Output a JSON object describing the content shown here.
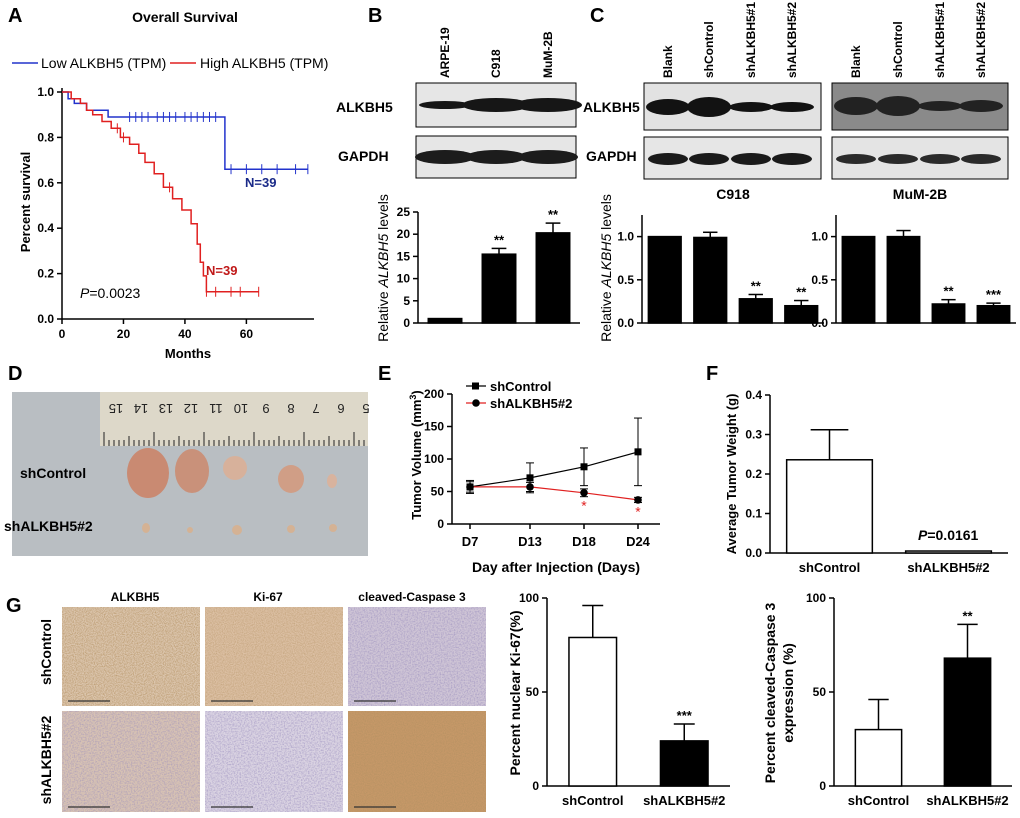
{
  "panels": {
    "A": "A",
    "B": "B",
    "C": "C",
    "D": "D",
    "E": "E",
    "F": "F",
    "G": "G"
  },
  "panel_a": {
    "title": "Overall Survival",
    "legend_low": "Low ALKBH5 (TPM)",
    "legend_high": "High ALKBH5 (TPM)",
    "ylabel": "Percent survival",
    "xlabel": "Months",
    "n_low": "N=39",
    "n_high": "N=39",
    "p_prefix": "P",
    "p_value": "=0.0023",
    "colors": {
      "low": "#2233cc",
      "high": "#e02020",
      "n_low": "#1a2a88",
      "n_high": "#c01818"
    },
    "yticks": [
      "0.0",
      "0.2",
      "0.4",
      "0.6",
      "0.8",
      "1.0"
    ],
    "xticks": [
      "0",
      "20",
      "40",
      "60"
    ]
  },
  "chart_data": [
    {
      "id": "A",
      "type": "line",
      "title": "Overall Survival",
      "xlabel": "Months",
      "ylabel": "Percent survival",
      "xlim": [
        0,
        82
      ],
      "ylim": [
        0,
        1.0
      ],
      "series": [
        {
          "name": "Low ALKBH5 (TPM)",
          "points": [
            [
              0,
              1.0
            ],
            [
              2,
              1.0
            ],
            [
              2,
              0.97
            ],
            [
              4,
              0.97
            ],
            [
              4,
              0.95
            ],
            [
              8,
              0.95
            ],
            [
              8,
              0.92
            ],
            [
              15,
              0.92
            ],
            [
              15,
              0.89
            ],
            [
              53,
              0.89
            ],
            [
              53,
              0.66
            ],
            [
              80,
              0.66
            ]
          ]
        },
        {
          "name": "High ALKBH5 (TPM)",
          "points": [
            [
              0,
              1.0
            ],
            [
              3,
              1.0
            ],
            [
              3,
              0.97
            ],
            [
              6,
              0.97
            ],
            [
              6,
              0.95
            ],
            [
              8,
              0.95
            ],
            [
              8,
              0.92
            ],
            [
              10,
              0.92
            ],
            [
              10,
              0.9
            ],
            [
              13,
              0.9
            ],
            [
              13,
              0.87
            ],
            [
              16,
              0.87
            ],
            [
              16,
              0.84
            ],
            [
              19,
              0.84
            ],
            [
              19,
              0.8
            ],
            [
              22,
              0.8
            ],
            [
              22,
              0.77
            ],
            [
              25,
              0.77
            ],
            [
              25,
              0.73
            ],
            [
              27,
              0.73
            ],
            [
              27,
              0.69
            ],
            [
              30,
              0.69
            ],
            [
              30,
              0.64
            ],
            [
              33,
              0.64
            ],
            [
              33,
              0.58
            ],
            [
              36,
              0.58
            ],
            [
              36,
              0.53
            ],
            [
              39,
              0.53
            ],
            [
              39,
              0.48
            ],
            [
              42,
              0.48
            ],
            [
              42,
              0.42
            ],
            [
              44,
              0.42
            ],
            [
              44,
              0.33
            ],
            [
              45,
              0.33
            ],
            [
              45,
              0.25
            ],
            [
              46,
              0.25
            ],
            [
              46,
              0.19
            ],
            [
              47,
              0.19
            ],
            [
              47,
              0.12
            ],
            [
              64,
              0.12
            ]
          ]
        }
      ]
    },
    {
      "id": "B",
      "type": "bar",
      "ylabel_prefix": "Relative ",
      "ylabel_gene": "ALKBH5",
      "ylabel_suffix": " levels",
      "categories": [
        "ARPE-19",
        "C918",
        "MuM-2B"
      ],
      "values": [
        1,
        15.5,
        20.3
      ],
      "errors": [
        0,
        1.3,
        2.2
      ],
      "sig": [
        "",
        "**",
        "**"
      ],
      "ylim": [
        0,
        25
      ],
      "yticks": [
        "0",
        "5",
        "10",
        "15",
        "20",
        "25"
      ]
    },
    {
      "id": "C918",
      "type": "bar",
      "title": "C918",
      "ylabel_prefix": "Relative ",
      "ylabel_gene": "ALKBH5",
      "ylabel_suffix": " levels",
      "categories": [
        "Blank",
        "shControl",
        "shALKBH5#1",
        "shALKBH5#2"
      ],
      "values": [
        1.0,
        0.99,
        0.28,
        0.2
      ],
      "errors": [
        0,
        0.06,
        0.05,
        0.06
      ],
      "sig": [
        "",
        "",
        "**",
        "**"
      ],
      "ylim": [
        0,
        1.25
      ],
      "yticks": [
        "0.0",
        "0.5",
        "1.0"
      ]
    },
    {
      "id": "MuM-2B",
      "type": "bar",
      "title": "MuM-2B",
      "categories": [
        "Blank",
        "shControl",
        "shALKBH5#1",
        "shALKBH5#2"
      ],
      "values": [
        1.0,
        1.0,
        0.22,
        0.2
      ],
      "errors": [
        0,
        0.07,
        0.05,
        0.03
      ],
      "sig": [
        "",
        "",
        "**",
        "***"
      ],
      "ylim": [
        0,
        1.25
      ],
      "yticks": [
        "0.0",
        "0.5",
        "1.0"
      ]
    },
    {
      "id": "E",
      "type": "line",
      "ylabel": "Tumor Volume (mm",
      "ylabel_sup": "3",
      "ylabel_end": ")",
      "xlabel": "Day after Injection (Days)",
      "categories": [
        "D7",
        "D13",
        "D18",
        "D24"
      ],
      "ylim": [
        0,
        200
      ],
      "yticks": [
        "0",
        "50",
        "100",
        "150",
        "200"
      ],
      "series": [
        {
          "name": "shControl",
          "values": [
            57,
            71,
            88,
            111
          ],
          "errors": [
            10,
            23,
            29,
            52
          ],
          "color": "#000000"
        },
        {
          "name": "shALKBH5#2",
          "values": [
            57,
            57,
            48,
            37
          ],
          "errors": [
            8,
            7,
            6,
            4
          ],
          "color": "#e02020",
          "sig": [
            "",
            "",
            "*",
            "*"
          ]
        }
      ]
    },
    {
      "id": "F",
      "type": "bar",
      "ylabel": "Average Tumor Weight (g)",
      "categories": [
        "shControl",
        "shALKBH5#2"
      ],
      "values": [
        0.236,
        0.005
      ],
      "errors": [
        0.076,
        0
      ],
      "ylim": [
        0,
        0.4
      ],
      "yticks": [
        "0.0",
        "0.1",
        "0.2",
        "0.3",
        "0.4"
      ],
      "p_prefix": "P",
      "p_value": "=0.0161"
    },
    {
      "id": "G-Ki67",
      "type": "bar",
      "ylabel": "Percent nuclear Ki-67(%)",
      "categories": [
        "shControl",
        "shALKBH5#2"
      ],
      "values": [
        79,
        24
      ],
      "errors": [
        17,
        9
      ],
      "sig": [
        "",
        "***"
      ],
      "ylim": [
        0,
        100
      ],
      "yticks": [
        "0",
        "50",
        "100"
      ]
    },
    {
      "id": "G-Caspase",
      "type": "bar",
      "ylabel": "Percent cleaved-Caspase 3",
      "ylabel2": "expression (%)",
      "categories": [
        "shControl",
        "shALKBH5#2"
      ],
      "values": [
        30,
        68
      ],
      "errors": [
        16,
        18
      ],
      "sig": [
        "",
        "**"
      ],
      "ylim": [
        0,
        100
      ],
      "yticks": [
        "0",
        "50",
        "100"
      ]
    }
  ],
  "panel_b": {
    "lanes": [
      "ARPE-19",
      "C918",
      "MuM-2B"
    ],
    "rows": [
      "ALKBH5",
      "GAPDH"
    ]
  },
  "panel_c": {
    "lanes": [
      "Blank",
      "shControl",
      "shALKBH5#1",
      "shALKBH5#2"
    ],
    "rows": [
      "ALKBH5",
      "GAPDH"
    ],
    "cell_lines": [
      "C918",
      "MuM-2B"
    ]
  },
  "panel_d": {
    "row_labels": [
      "shControl",
      "shALKBH5#2"
    ],
    "ruler_numbers": [
      "15",
      "14",
      "13",
      "12",
      "11",
      "10",
      "9",
      "8",
      "7",
      "6",
      "5"
    ]
  },
  "panel_g": {
    "stains": [
      "ALKBH5",
      "Ki-67",
      "cleaved-Caspase 3"
    ],
    "rows": [
      "shControl",
      "shALKBH5#2"
    ]
  }
}
